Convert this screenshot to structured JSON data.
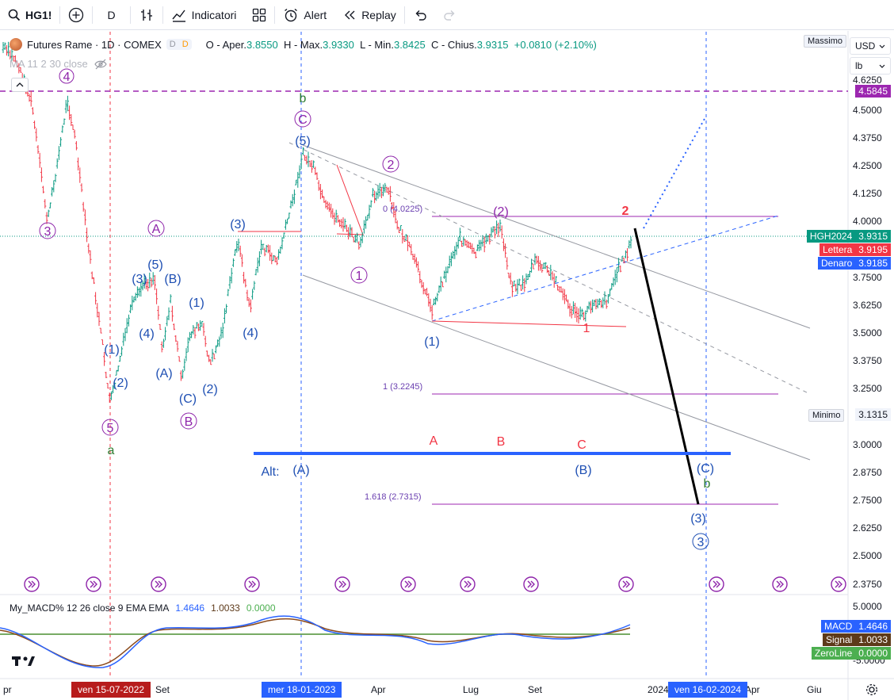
{
  "toolbar": {
    "symbol": "HG1!",
    "interval": "D",
    "indicators_label": "Indicatori",
    "alert_label": "Alert",
    "replay_label": "Replay"
  },
  "legend": {
    "title": "Futures Rame · 1D · COMEX",
    "badge_d1": "D",
    "badge_d2": "D",
    "o_label": "O - Aper.",
    "o_val": "3.8550",
    "h_label": "H - Max.",
    "h_val": "3.9330",
    "l_label": "L - Min.",
    "l_val": "3.8425",
    "c_label": "C - Chius.",
    "c_val": "3.9315",
    "chg": "+0.0810 (+2.10%)",
    "ma": "MA 11 2 30 close"
  },
  "macd_legend": {
    "name": "My_MACD% 12 26 close 9 EMA EMA",
    "v1": "1.4646",
    "v2": "1.0033",
    "v3": "0.0000"
  },
  "price_axis": {
    "currency": "USD",
    "unit": "lb",
    "massimo_label": "Massimo",
    "minimo_label": "Minimo",
    "minimo_val": "3.1315",
    "top_line_val": "4.5845",
    "ticks": [
      "4.6250",
      "4.5000",
      "4.3750",
      "4.2500",
      "4.1250",
      "4.0000",
      "3.7500",
      "3.6250",
      "3.5000",
      "3.3750",
      "3.2500",
      "3.0000",
      "2.8750",
      "2.7500",
      "2.6250",
      "2.5000",
      "2.3750"
    ],
    "macd_ticks": [
      "5.0000",
      "-5.0000"
    ],
    "boxes": [
      {
        "label": "HGH2024",
        "val": "3.9315",
        "color": "#089981"
      },
      {
        "label": "Lettera",
        "val": "3.9195",
        "color": "#f23645"
      },
      {
        "label": "Denaro",
        "val": "3.9185",
        "color": "#2962ff"
      }
    ],
    "macd_boxes": [
      {
        "label": "MACD",
        "val": "1.4646",
        "color": "#2962ff"
      },
      {
        "label": "Signal",
        "val": "1.0033",
        "color": "#5d3a1a"
      },
      {
        "label": "ZeroLine",
        "val": "0.0000",
        "color": "#4caf50"
      }
    ]
  },
  "time_axis": {
    "labels": [
      "pr",
      "Set",
      "Apr",
      "Lug",
      "Set",
      "2024",
      "Apr",
      "Giu"
    ],
    "badge_left": "ven 15-07-2022",
    "badge_mid": "mer 18-01-2023",
    "badge_right": "ven 16-02-2024"
  },
  "annotations": {
    "fib0": "0 (4.0225)",
    "fib1": "1 (3.2245)",
    "fib1618": "1.618 (2.7315)",
    "alt": "Alt:",
    "wave_labels": {
      "w4": "4",
      "w3": "3",
      "w5": "5",
      "wa": "a",
      "wA_circ": "A",
      "wB_circ": "B",
      "wb": "b",
      "wC_circ": "C",
      "w5p": "(5)",
      "w2c": "2",
      "w1c": "1",
      "w2p": "(2)",
      "wr2": "2",
      "wr1": "1",
      "w1p": "(1)",
      "w3p": "(3)",
      "w4p": "(4)",
      "wA": "(A)",
      "wB": "(B)",
      "wC": "(C)",
      "w5b": "(5)",
      "wBb": "(B)",
      "w1b": "(1)",
      "w2b": "(2)",
      "w4b": "(4)",
      "w3b": "(3)",
      "wAlt": "(A)",
      "wB2": "(B)",
      "wCb": "(C)",
      "wb2": "b",
      "w3e": "(3)",
      "w3ec": "3",
      "rA": "A",
      "rB": "B",
      "rC": "C"
    }
  },
  "colors": {
    "up": "#089981",
    "down": "#f23645",
    "blue": "#2962ff",
    "purple": "#9c27b0",
    "wave_blue": "#1e4fb3",
    "wave_purple": "#8e24aa"
  }
}
